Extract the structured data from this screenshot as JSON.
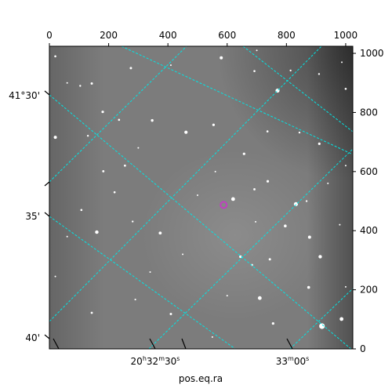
{
  "chart_data": {
    "type": "image",
    "x_pixel_axis": {
      "ticks": [
        0,
        200,
        400,
        600,
        800,
        1000
      ],
      "range": [
        0,
        1024
      ]
    },
    "y_pixel_axis": {
      "ticks": [
        0,
        200,
        400,
        600,
        800,
        1000
      ],
      "range": [
        0,
        1024
      ]
    },
    "ra_axis": {
      "label": "pos.eq.ra",
      "ticks": [
        {
          "label_main": "20",
          "h": "h",
          "m_main": "32",
          "m": "m",
          "s_main": "30",
          "s": "s"
        },
        {
          "label_main": "33",
          "m": "m",
          "s_main": "00",
          "s": "s"
        }
      ]
    },
    "dec_axis": {
      "ticks": [
        "41°30'",
        "35'",
        "40'"
      ]
    },
    "grid": true,
    "grid_color": "#00e5e5",
    "marker_color": "#c040c0",
    "marker": {
      "x": 588,
      "y": 487
    },
    "stars": [
      [
        20,
        990,
        1.3
      ],
      [
        104,
        890,
        1.2
      ],
      [
        143,
        898,
        1.5
      ],
      [
        180,
        802,
        1.6
      ],
      [
        235,
        775,
        1.3
      ],
      [
        275,
        950,
        1.5
      ],
      [
        255,
        620,
        1.4
      ],
      [
        347,
        773,
        1.7
      ],
      [
        461,
        733,
        2.1
      ],
      [
        580,
        985,
        2.0
      ],
      [
        692,
        940,
        1.3
      ],
      [
        770,
        874,
        2.6
      ],
      [
        814,
        942,
        1.2
      ],
      [
        910,
        930,
        1.2
      ],
      [
        1000,
        880,
        1.3
      ],
      [
        987,
        970,
        1.0
      ],
      [
        554,
        758,
        1.6
      ],
      [
        657,
        660,
        1.6
      ],
      [
        736,
        736,
        1.3
      ],
      [
        844,
        732,
        1.2
      ],
      [
        911,
        694,
        1.6
      ],
      [
        1000,
        620,
        1.0
      ],
      [
        20,
        716,
        2.0
      ],
      [
        130,
        721,
        1.2
      ],
      [
        182,
        601,
        1.4
      ],
      [
        220,
        530,
        1.3
      ],
      [
        108,
        470,
        1.3
      ],
      [
        160,
        395,
        2.2
      ],
      [
        281,
        431,
        1.2
      ],
      [
        374,
        392,
        1.9
      ],
      [
        500,
        520,
        1.0
      ],
      [
        620,
        507,
        2.4
      ],
      [
        692,
        540,
        1.4
      ],
      [
        696,
        430,
        1.0
      ],
      [
        737,
        567,
        1.6
      ],
      [
        832,
        490,
        2.6
      ],
      [
        868,
        500,
        1.2
      ],
      [
        796,
        416,
        1.8
      ],
      [
        878,
        378,
        2.0
      ],
      [
        914,
        312,
        2.2
      ],
      [
        645,
        312,
        1.7
      ],
      [
        684,
        284,
        1.3
      ],
      [
        744,
        303,
        1.5
      ],
      [
        710,
        172,
        2.4
      ],
      [
        875,
        208,
        1.8
      ],
      [
        755,
        86,
        1.6
      ],
      [
        920,
        77,
        3.6
      ],
      [
        986,
        101,
        2.4
      ],
      [
        410,
        118,
        1.5
      ],
      [
        143,
        122,
        1.4
      ],
      [
        20,
        245,
        1.0
      ],
      [
        290,
        167,
        1.1
      ],
      [
        600,
        180,
        1.0
      ],
      [
        450,
        320,
        1.0
      ],
      [
        1000,
        210,
        1.0
      ],
      [
        550,
        40,
        1.0
      ],
      [
        60,
        380,
        1.0
      ],
      [
        340,
        260,
        1.0
      ],
      [
        940,
        560,
        1.0
      ],
      [
        60,
        900,
        1.0
      ],
      [
        410,
        960,
        1.0
      ],
      [
        700,
        1010,
        1.0
      ],
      [
        980,
        420,
        1.0
      ],
      [
        560,
        600,
        1.0
      ],
      [
        300,
        680,
        1.0
      ]
    ]
  }
}
